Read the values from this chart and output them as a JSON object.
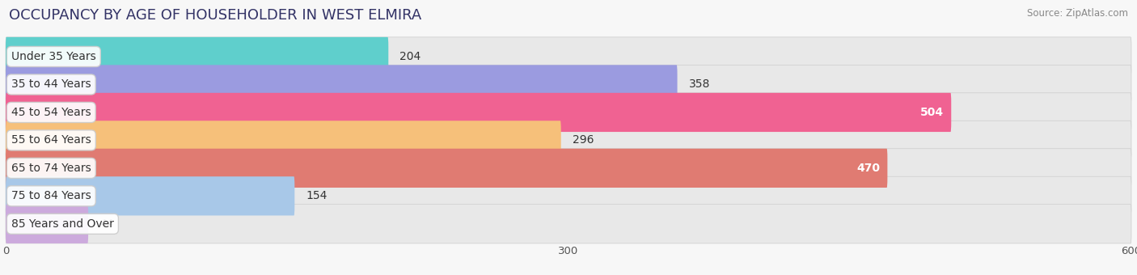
{
  "title": "OCCUPANCY BY AGE OF HOUSEHOLDER IN WEST ELMIRA",
  "source": "Source: ZipAtlas.com",
  "categories": [
    "Under 35 Years",
    "35 to 44 Years",
    "45 to 54 Years",
    "55 to 64 Years",
    "65 to 74 Years",
    "75 to 84 Years",
    "85 Years and Over"
  ],
  "values": [
    204,
    358,
    504,
    296,
    470,
    154,
    44
  ],
  "bar_colors": [
    "#5fcfcc",
    "#9b9be0",
    "#f06292",
    "#f6c07a",
    "#e07b72",
    "#a8c8e8",
    "#ccaadd"
  ],
  "bar_bg_color": "#e8e8e8",
  "bar_border_color": "#d0d0d0",
  "xlim": [
    0,
    600
  ],
  "xticks": [
    0,
    300,
    600
  ],
  "title_fontsize": 13,
  "label_fontsize": 10,
  "value_fontsize": 10,
  "background_color": "#f7f7f7"
}
